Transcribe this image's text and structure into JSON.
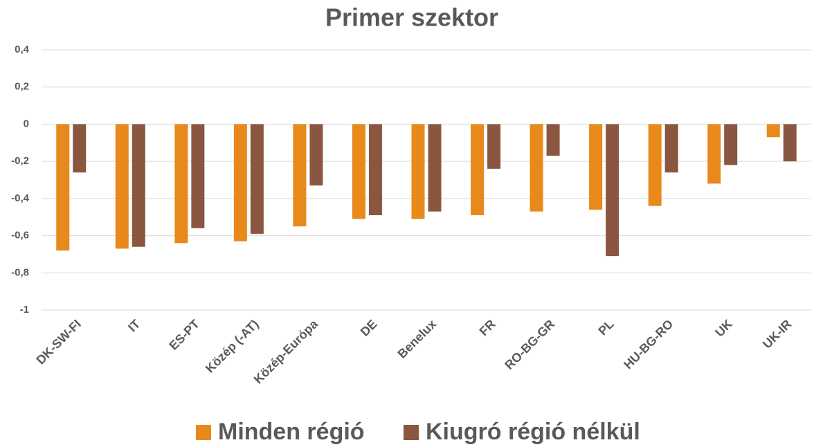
{
  "chart_data": {
    "type": "bar",
    "title": "Primer szektor",
    "categories": [
      "DK-SW-FI",
      "IT",
      "ES-PT",
      "Közép (-AT)",
      "Közép-Európa",
      "DE",
      "Benelux",
      "FR",
      "RO-BG-GR",
      "PL",
      "HU-BG-RO",
      "UK",
      "UK-IR"
    ],
    "series": [
      {
        "name": "Minden régió",
        "color": "#e8891b",
        "values": [
          -0.68,
          -0.67,
          -0.64,
          -0.63,
          -0.55,
          -0.51,
          -0.51,
          -0.49,
          -0.47,
          -0.46,
          -0.44,
          -0.32,
          -0.07
        ]
      },
      {
        "name": "Kiugró régió nélkül",
        "color": "#8b5640",
        "values": [
          -0.26,
          -0.66,
          -0.56,
          -0.59,
          -0.33,
          -0.49,
          -0.47,
          -0.24,
          -0.17,
          -0.71,
          -0.26,
          -0.22,
          -0.2
        ]
      }
    ],
    "ylim": [
      -1,
      0.4
    ],
    "yticks": [
      {
        "value": 0.4,
        "label": "0,4"
      },
      {
        "value": 0.2,
        "label": "0,2"
      },
      0,
      {
        "value": -0.2,
        "label": "-0,2"
      },
      {
        "value": -0.4,
        "label": "-0,4"
      },
      {
        "value": -0.6,
        "label": "-0,6"
      },
      {
        "value": -0.8,
        "label": "-0,8"
      },
      -1
    ],
    "grid": true
  }
}
